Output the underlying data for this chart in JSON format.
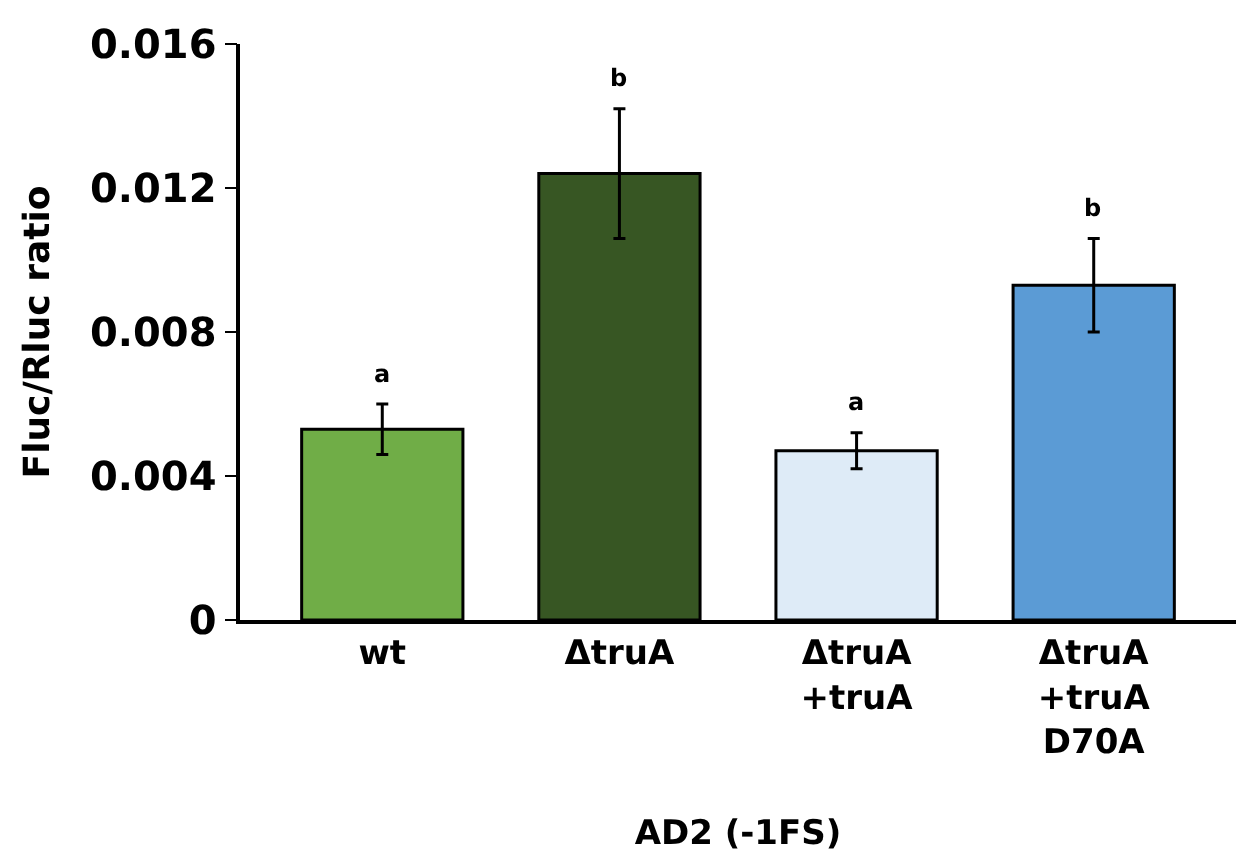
{
  "chart_data": {
    "type": "bar",
    "xlabel": "AD2 (-1FS)",
    "ylabel": "Fluc/Rluc ratio",
    "categories": [
      "wt",
      "ΔtruA",
      "ΔtruA\n+truA",
      "ΔtruA\n+truA\nD70A"
    ],
    "values": [
      0.0053,
      0.0124,
      0.0047,
      0.0093
    ],
    "errors": [
      0.0007,
      0.0018,
      0.0005,
      0.0013
    ],
    "colors": [
      "#70ad47",
      "#375623",
      "#deebf7",
      "#5b9bd5"
    ],
    "ylim": [
      0,
      0.016
    ],
    "yticks": [
      0,
      0.004,
      0.008,
      0.012,
      0.016
    ],
    "legend": false,
    "annotations": [
      {
        "text": "a",
        "x": "wt",
        "y": 0.006
      },
      {
        "text": "b",
        "x": "ΔtruA",
        "y": 0.0142
      },
      {
        "text": "a",
        "x": "ΔtruA\n+truA",
        "y": 0.0052
      },
      {
        "text": "b",
        "x": "ΔtruA\n+truA\nD70A",
        "y": 0.0106
      }
    ]
  }
}
